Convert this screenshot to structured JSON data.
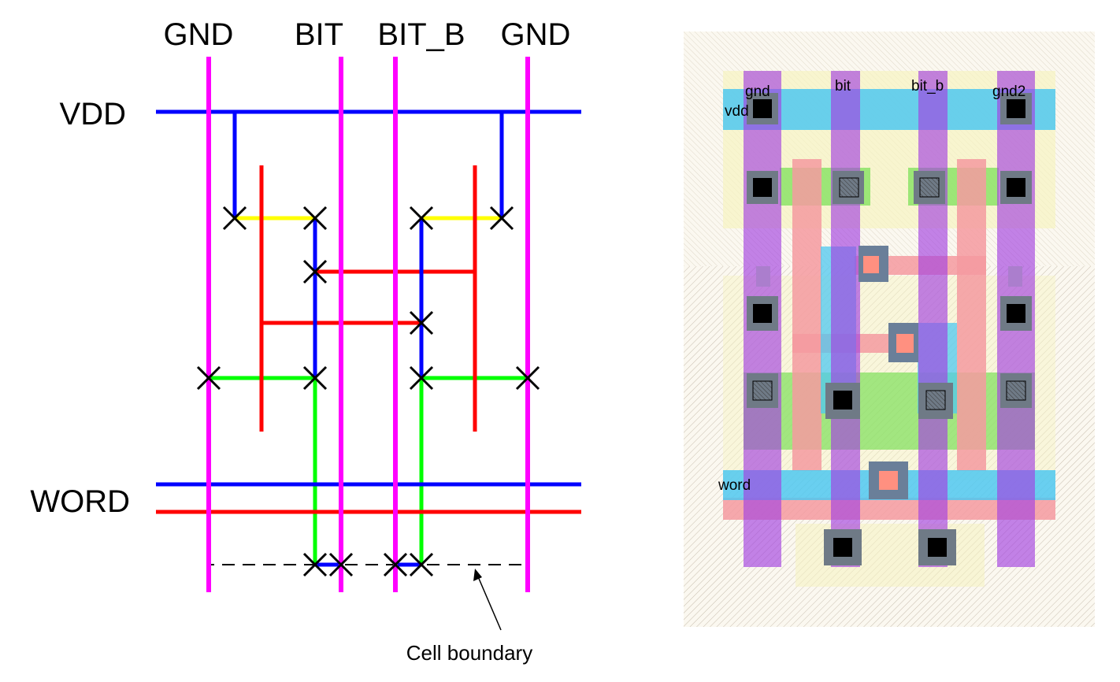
{
  "stick_diagram": {
    "column_labels": [
      "GND",
      "BIT",
      "BIT_B",
      "GND"
    ],
    "row_labels": {
      "vdd": "VDD",
      "word": "WORD"
    },
    "annotation": "Cell boundary"
  },
  "layout_view": {
    "labels": {
      "vdd": "vdd",
      "gnd": "gnd",
      "bit": "bit",
      "bit_b": "bit_b",
      "gnd2": "gnd2",
      "word": "word"
    }
  },
  "colors": {
    "metal1": "#0000ff",
    "metal2": "#ff00ff",
    "poly": "#ff0000",
    "diffusion_n": "#00ff00",
    "diffusion_p": "#ffff00",
    "layout_metal2": "#a340e0",
    "layout_metal1": "#4fc8f0",
    "layout_poly": "#f49aa0",
    "layout_active": "#7ee05a",
    "layout_nwell": "#f6f3c0"
  },
  "icons": {
    "contact": "x-mark-icon",
    "layout_contact": "black-square-icon"
  }
}
